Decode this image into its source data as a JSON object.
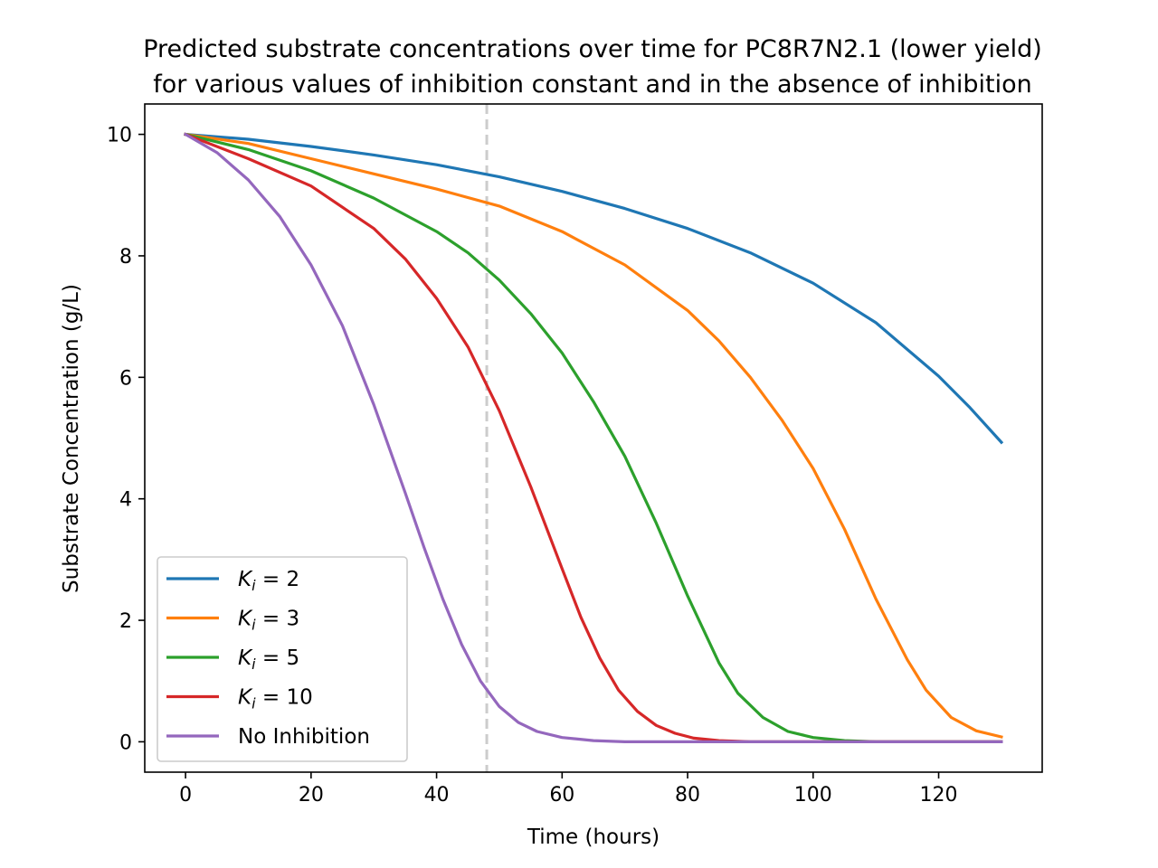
{
  "chart_data": {
    "type": "line",
    "title_lines": [
      "Predicted substrate concentrations over time for PC8R7N2.1 (lower yield)",
      "for various values of inhibition constant and in the absence of inhibition"
    ],
    "xlabel": "Time (hours)",
    "ylabel": "Substrate Concentration (g/L)",
    "xlim": [
      -6.5,
      136.5
    ],
    "ylim": [
      -0.5,
      10.5
    ],
    "xticks": [
      0,
      20,
      40,
      60,
      80,
      100,
      120
    ],
    "yticks": [
      0,
      2,
      4,
      6,
      8,
      10
    ],
    "grid": false,
    "legend_position": "lower-left",
    "vline": {
      "x": 48,
      "color": "#cccccc",
      "style": "dashed"
    },
    "series": [
      {
        "name": "K_i = 2",
        "legend_base": "K",
        "legend_sub": "i",
        "legend_rest": " = 2",
        "color": "#1f77b4",
        "x": [
          0,
          10,
          20,
          30,
          40,
          50,
          60,
          70,
          80,
          90,
          100,
          110,
          120,
          125,
          130
        ],
        "y": [
          10,
          9.92,
          9.8,
          9.66,
          9.5,
          9.3,
          9.06,
          8.78,
          8.45,
          8.05,
          7.55,
          6.9,
          6.02,
          5.5,
          4.93
        ]
      },
      {
        "name": "K_i = 3",
        "legend_base": "K",
        "legend_sub": "i",
        "legend_rest": " = 3",
        "color": "#ff7f0e",
        "x": [
          0,
          10,
          20,
          30,
          40,
          50,
          60,
          70,
          80,
          85,
          90,
          95,
          100,
          105,
          110,
          115,
          118,
          122,
          126,
          130
        ],
        "y": [
          10,
          9.85,
          9.6,
          9.35,
          9.1,
          8.82,
          8.4,
          7.85,
          7.1,
          6.6,
          6.0,
          5.3,
          4.5,
          3.5,
          2.35,
          1.35,
          0.85,
          0.4,
          0.18,
          0.08
        ]
      },
      {
        "name": "K_i = 5",
        "legend_base": "K",
        "legend_sub": "i",
        "legend_rest": " = 5",
        "color": "#2ca02c",
        "x": [
          0,
          10,
          20,
          30,
          40,
          45,
          50,
          55,
          60,
          65,
          70,
          75,
          80,
          85,
          88,
          92,
          96,
          100,
          105,
          110,
          130
        ],
        "y": [
          10,
          9.75,
          9.4,
          8.95,
          8.4,
          8.05,
          7.6,
          7.05,
          6.4,
          5.6,
          4.7,
          3.6,
          2.4,
          1.3,
          0.8,
          0.4,
          0.17,
          0.07,
          0.02,
          0.0,
          0.0
        ]
      },
      {
        "name": "K_i = 10",
        "legend_base": "K",
        "legend_sub": "i",
        "legend_rest": " = 10",
        "color": "#d62728",
        "x": [
          0,
          10,
          20,
          30,
          35,
          40,
          45,
          50,
          55,
          60,
          63,
          66,
          69,
          72,
          75,
          78,
          81,
          85,
          90,
          130
        ],
        "y": [
          10,
          9.6,
          9.15,
          8.45,
          7.95,
          7.3,
          6.5,
          5.45,
          4.2,
          2.85,
          2.05,
          1.38,
          0.85,
          0.5,
          0.27,
          0.14,
          0.06,
          0.02,
          0.0,
          0.0
        ]
      },
      {
        "name": "No Inhibition",
        "legend_base": "No Inhibition",
        "legend_sub": "",
        "legend_rest": "",
        "color": "#9467bd",
        "x": [
          0,
          5,
          10,
          15,
          20,
          25,
          30,
          35,
          38,
          41,
          44,
          47,
          50,
          53,
          56,
          60,
          65,
          70,
          130
        ],
        "y": [
          10,
          9.7,
          9.25,
          8.65,
          7.85,
          6.85,
          5.55,
          4.1,
          3.2,
          2.35,
          1.6,
          1.0,
          0.58,
          0.32,
          0.17,
          0.07,
          0.02,
          0.0,
          0.0
        ]
      }
    ]
  }
}
